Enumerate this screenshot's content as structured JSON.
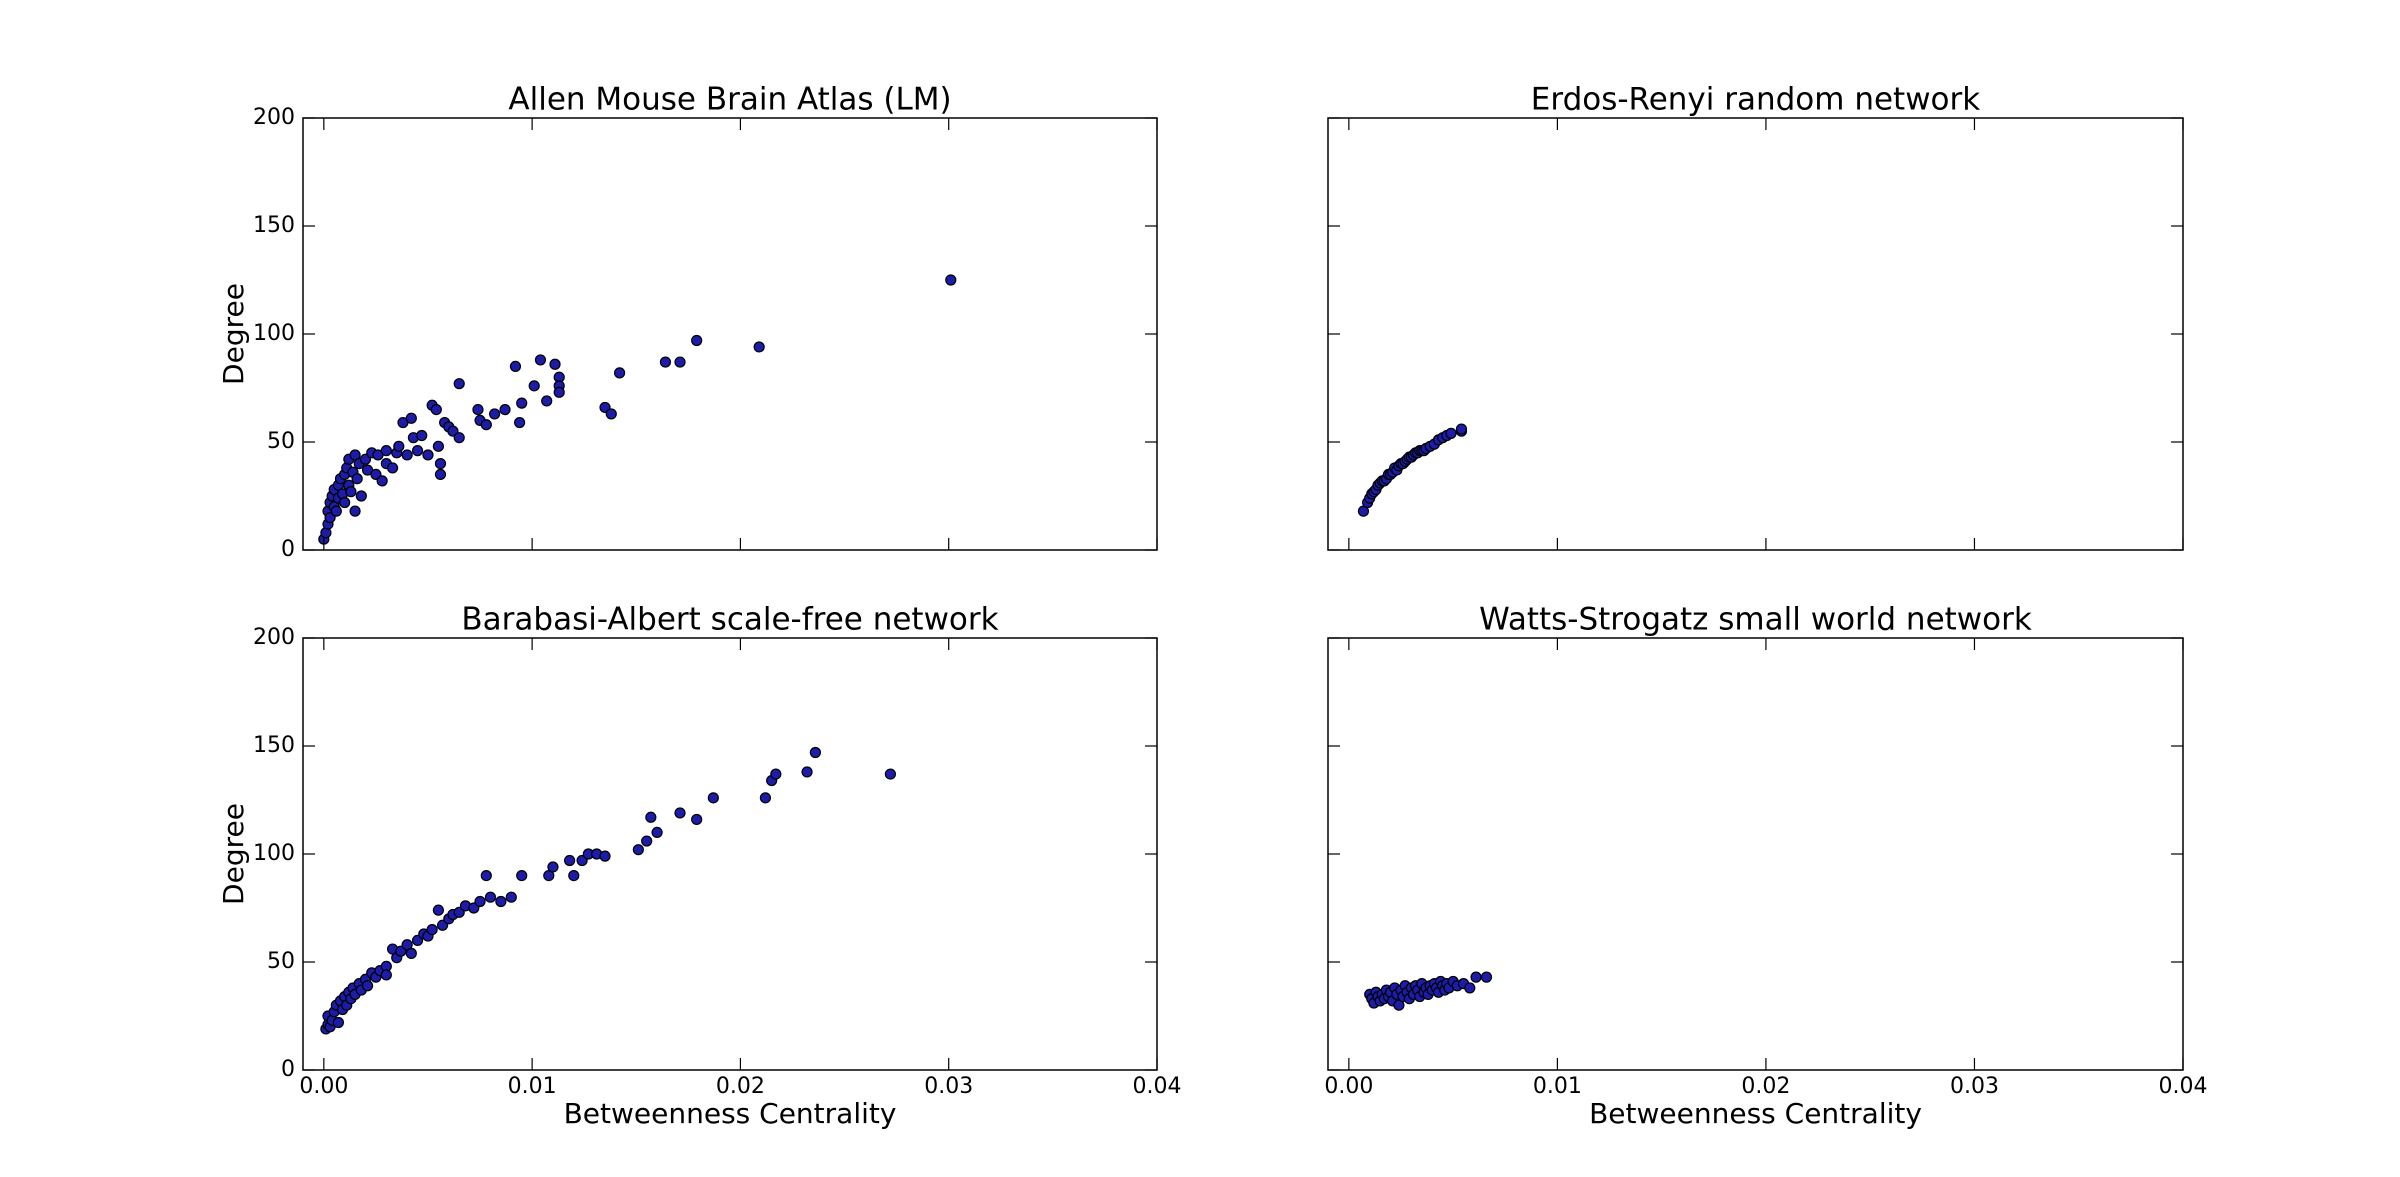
{
  "chart_data": [
    {
      "type": "scatter",
      "title": "Allen Mouse Brain Atlas (LM)",
      "ylabel": "Degree",
      "color": "#1c1ca8",
      "edgecolor": "#000000",
      "xlim": [
        -0.001,
        0.04
      ],
      "ylim": [
        0,
        200
      ],
      "xticks": [
        {
          "value": 0,
          "label": "0.00"
        },
        {
          "value": 0.01,
          "label": "0.01"
        },
        {
          "value": 0.02,
          "label": "0.02"
        },
        {
          "value": 0.03,
          "label": "0.03"
        },
        {
          "value": 0.04,
          "label": "0.04"
        }
      ],
      "xticklabels": false,
      "yticks": [
        0,
        50,
        100,
        150,
        200
      ],
      "yticklabels": true,
      "x": [
        0.0,
        0.0001,
        0.0002,
        0.0002,
        0.0003,
        0.0003,
        0.0004,
        0.0005,
        0.0005,
        0.0006,
        0.0007,
        0.0007,
        0.0008,
        0.0009,
        0.001,
        0.001,
        0.0011,
        0.0012,
        0.0012,
        0.0013,
        0.0014,
        0.0015,
        0.0015,
        0.0016,
        0.0017,
        0.0018,
        0.002,
        0.0021,
        0.0023,
        0.0025,
        0.0026,
        0.0028,
        0.003,
        0.003,
        0.0033,
        0.0035,
        0.0036,
        0.0038,
        0.004,
        0.0042,
        0.0043,
        0.0045,
        0.0047,
        0.005,
        0.0052,
        0.0054,
        0.0055,
        0.0056,
        0.0056,
        0.0058,
        0.006,
        0.0062,
        0.0065,
        0.0065,
        0.0074,
        0.0075,
        0.0078,
        0.0082,
        0.0087,
        0.0092,
        0.0094,
        0.0095,
        0.0101,
        0.0104,
        0.0107,
        0.0111,
        0.0113,
        0.0113,
        0.0113,
        0.0135,
        0.0138,
        0.0142,
        0.0164,
        0.0171,
        0.0179,
        0.0209,
        0.0301
      ],
      "values": [
        5,
        8,
        12,
        18,
        22,
        15,
        25,
        20,
        28,
        18,
        30,
        24,
        33,
        26,
        35,
        22,
        38,
        30,
        42,
        27,
        36,
        18,
        44,
        33,
        40,
        25,
        42,
        37,
        45,
        35,
        44,
        32,
        46,
        40,
        38,
        45,
        48,
        59,
        44,
        61,
        52,
        46,
        53,
        44,
        67,
        65,
        48,
        40,
        35,
        59,
        57,
        55,
        77,
        52,
        65,
        60,
        58,
        63,
        65,
        85,
        59,
        68,
        76,
        88,
        69,
        86,
        80,
        76,
        73,
        66,
        63,
        82,
        87,
        87,
        97,
        94,
        125
      ]
    },
    {
      "type": "scatter",
      "title": "Erdos-Renyi random network",
      "color": "#1c1ca8",
      "edgecolor": "#000000",
      "xlim": [
        -0.001,
        0.04
      ],
      "ylim": [
        0,
        200
      ],
      "xticks": [
        {
          "value": 0,
          "label": "0.00"
        },
        {
          "value": 0.01,
          "label": "0.01"
        },
        {
          "value": 0.02,
          "label": "0.02"
        },
        {
          "value": 0.03,
          "label": "0.03"
        },
        {
          "value": 0.04,
          "label": "0.04"
        }
      ],
      "xticklabels": false,
      "yticks": [
        0,
        50,
        100,
        150,
        200
      ],
      "yticklabels": false,
      "x": [
        0.0007,
        0.0009,
        0.001,
        0.0011,
        0.0012,
        0.0013,
        0.0014,
        0.0015,
        0.0016,
        0.0017,
        0.0018,
        0.0019,
        0.002,
        0.0021,
        0.0022,
        0.0023,
        0.0024,
        0.0025,
        0.0026,
        0.0027,
        0.0028,
        0.0029,
        0.003,
        0.0031,
        0.0032,
        0.0033,
        0.0034,
        0.0035,
        0.0036,
        0.0037,
        0.0039,
        0.0041,
        0.0043,
        0.0045,
        0.0047,
        0.0049,
        0.0054,
        0.0054
      ],
      "values": [
        18,
        22,
        24,
        26,
        27,
        28,
        30,
        31,
        32,
        32,
        33,
        35,
        35,
        36,
        38,
        37,
        39,
        40,
        40,
        41,
        42,
        43,
        43,
        44,
        45,
        45,
        46,
        46,
        46,
        47,
        48,
        49,
        51,
        52,
        53,
        54,
        55,
        56
      ]
    },
    {
      "type": "scatter",
      "title": "Barabasi-Albert scale-free network",
      "xlabel": "Betweenness Centrality",
      "ylabel": "Degree",
      "color": "#1c1ca8",
      "edgecolor": "#000000",
      "xlim": [
        -0.001,
        0.04
      ],
      "ylim": [
        0,
        200
      ],
      "xticks": [
        {
          "value": 0,
          "label": "0.00"
        },
        {
          "value": 0.01,
          "label": "0.01"
        },
        {
          "value": 0.02,
          "label": "0.02"
        },
        {
          "value": 0.03,
          "label": "0.03"
        },
        {
          "value": 0.04,
          "label": "0.04"
        }
      ],
      "xticklabels": true,
      "yticks": [
        0,
        50,
        100,
        150,
        200
      ],
      "yticklabels": true,
      "x": [
        0.0001,
        0.0002,
        0.0002,
        0.0003,
        0.0004,
        0.0005,
        0.0006,
        0.0007,
        0.0008,
        0.0009,
        0.001,
        0.0011,
        0.0012,
        0.0013,
        0.0014,
        0.0015,
        0.0017,
        0.0018,
        0.002,
        0.0021,
        0.0023,
        0.0025,
        0.0027,
        0.003,
        0.003,
        0.0033,
        0.0035,
        0.0037,
        0.004,
        0.0042,
        0.0045,
        0.0048,
        0.005,
        0.0052,
        0.0055,
        0.0057,
        0.006,
        0.0062,
        0.0065,
        0.0068,
        0.0072,
        0.0075,
        0.0078,
        0.008,
        0.0085,
        0.009,
        0.0095,
        0.0108,
        0.011,
        0.0118,
        0.012,
        0.0124,
        0.0127,
        0.0131,
        0.0135,
        0.0151,
        0.0155,
        0.0157,
        0.016,
        0.0171,
        0.0179,
        0.0187,
        0.0212,
        0.0215,
        0.0217,
        0.0232,
        0.0236,
        0.0272
      ],
      "values": [
        19,
        21,
        25,
        20,
        23,
        27,
        30,
        22,
        32,
        28,
        34,
        30,
        36,
        33,
        38,
        35,
        40,
        37,
        42,
        39,
        45,
        43,
        46,
        48,
        44,
        56,
        52,
        55,
        58,
        54,
        60,
        63,
        62,
        65,
        74,
        67,
        70,
        72,
        73,
        76,
        75,
        78,
        90,
        80,
        78,
        80,
        90,
        90,
        94,
        97,
        90,
        97,
        100,
        100,
        99,
        102,
        106,
        117,
        110,
        119,
        116,
        126,
        126,
        134,
        137,
        138,
        147,
        137
      ]
    },
    {
      "type": "scatter",
      "title": "Watts-Strogatz small world network",
      "xlabel": "Betweenness Centrality",
      "color": "#1c1ca8",
      "edgecolor": "#000000",
      "xlim": [
        -0.001,
        0.04
      ],
      "ylim": [
        0,
        200
      ],
      "xticks": [
        {
          "value": 0,
          "label": "0.00"
        },
        {
          "value": 0.01,
          "label": "0.01"
        },
        {
          "value": 0.02,
          "label": "0.02"
        },
        {
          "value": 0.03,
          "label": "0.03"
        },
        {
          "value": 0.04,
          "label": "0.04"
        }
      ],
      "xticklabels": true,
      "yticks": [
        0,
        50,
        100,
        150,
        200
      ],
      "yticklabels": false,
      "x": [
        0.001,
        0.0011,
        0.0012,
        0.0013,
        0.0014,
        0.0015,
        0.0016,
        0.0017,
        0.0018,
        0.0019,
        0.002,
        0.0021,
        0.0022,
        0.0023,
        0.0024,
        0.0025,
        0.0026,
        0.0027,
        0.0028,
        0.0029,
        0.003,
        0.0031,
        0.0032,
        0.0033,
        0.0034,
        0.0035,
        0.0036,
        0.0037,
        0.0038,
        0.0039,
        0.004,
        0.0041,
        0.0042,
        0.0043,
        0.0044,
        0.0045,
        0.0046,
        0.0047,
        0.0048,
        0.005,
        0.0052,
        0.0055,
        0.0058,
        0.0061,
        0.0066
      ],
      "values": [
        35,
        33,
        31,
        36,
        34,
        32,
        35,
        33,
        37,
        34,
        36,
        32,
        38,
        35,
        30,
        37,
        34,
        39,
        36,
        33,
        38,
        35,
        39,
        37,
        34,
        40,
        36,
        38,
        35,
        39,
        37,
        40,
        38,
        36,
        41,
        39,
        37,
        40,
        38,
        41,
        39,
        40,
        38,
        43,
        43
      ]
    }
  ]
}
